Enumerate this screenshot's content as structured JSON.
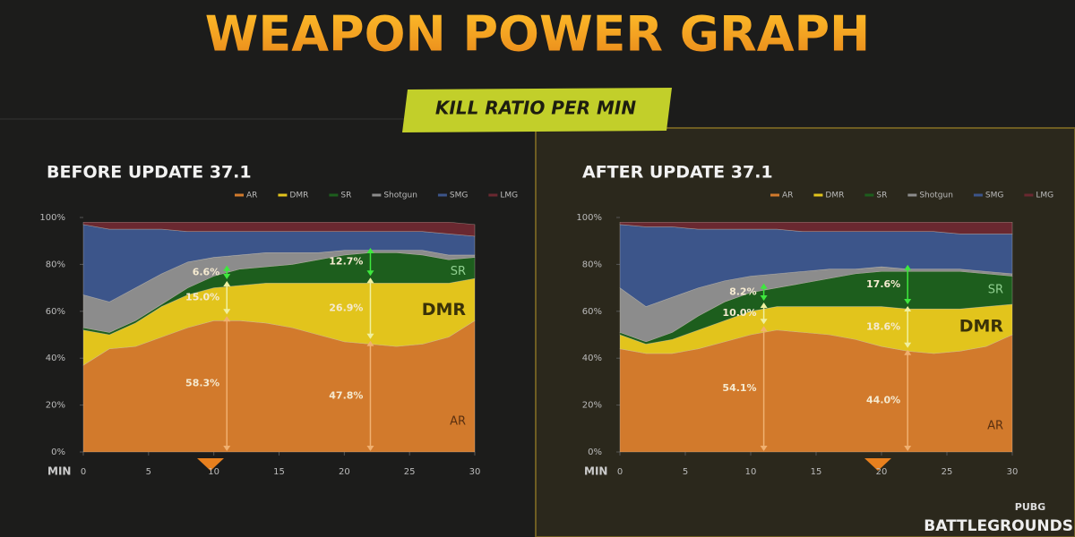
{
  "title": "WEAPON POWER GRAPH",
  "subtitle": "KILL RATIO PER MIN",
  "logo": [
    "PUBG",
    "BATTLEGROUNDS"
  ],
  "chart_data": [
    {
      "type": "stacked-area",
      "title": "BEFORE UPDATE 37.1",
      "xlabel": "MIN",
      "legend": "upper right",
      "grid": false,
      "x": [
        0,
        2,
        4,
        6,
        8,
        10,
        12,
        14,
        16,
        18,
        20,
        22,
        24,
        26,
        28,
        30
      ],
      "xlim": [
        0,
        30
      ],
      "xticks": [
        0,
        5,
        10,
        15,
        20,
        25,
        30
      ],
      "ylim": [
        0,
        100
      ],
      "yticks": [
        {
          "value": 0,
          "label": "0%"
        },
        {
          "value": 20,
          "label": "20%"
        },
        {
          "value": 40,
          "label": "40%"
        },
        {
          "value": 60,
          "label": "60%"
        },
        {
          "value": 80,
          "label": "80%"
        },
        {
          "value": 100,
          "label": "100%"
        }
      ],
      "series": [
        {
          "name": "AR",
          "color": "#d27a2c",
          "values": [
            37,
            44,
            45,
            49,
            53,
            56,
            56,
            55,
            53,
            50,
            47,
            46,
            45,
            46,
            49,
            56
          ]
        },
        {
          "name": "DMR",
          "color": "#e2c41c",
          "values": [
            15,
            6,
            10,
            13,
            14,
            14,
            15,
            17,
            19,
            22,
            25,
            26,
            27,
            26,
            23,
            18
          ]
        },
        {
          "name": "SR",
          "color": "#1d5e1d",
          "values": [
            1,
            1,
            1,
            1,
            3,
            5,
            7,
            7,
            8,
            10,
            12,
            13,
            13,
            12,
            10,
            9
          ]
        },
        {
          "name": "Shotgun",
          "color": "#8c8c8c",
          "values": [
            14,
            13,
            14,
            13,
            11,
            8,
            6,
            6,
            5,
            3,
            2,
            1,
            1,
            2,
            2,
            1
          ]
        },
        {
          "name": "SMG",
          "color": "#3c558a",
          "values": [
            30,
            31,
            25,
            19,
            13,
            11,
            10,
            9,
            9,
            9,
            8,
            8,
            8,
            8,
            9,
            8
          ]
        },
        {
          "name": "LMG",
          "color": "#6a2830",
          "values": [
            1,
            3,
            3,
            3,
            4,
            4,
            4,
            4,
            4,
            4,
            4,
            4,
            4,
            4,
            5,
            5
          ]
        }
      ],
      "annotations": [
        {
          "x": 11,
          "value": 58.3,
          "label": "58.3%"
        },
        {
          "x": 11,
          "value": 15.0,
          "label": "15.0%"
        },
        {
          "x": 11,
          "value": 6.6,
          "label": "6.6%"
        },
        {
          "x": 22,
          "value": 47.8,
          "label": "47.8%"
        },
        {
          "x": 22,
          "value": 26.9,
          "label": "26.9%"
        },
        {
          "x": 22,
          "value": 12.7,
          "label": "12.7%"
        }
      ]
    },
    {
      "type": "stacked-area",
      "title": "AFTER UPDATE 37.1",
      "xlabel": "MIN",
      "legend": "upper right",
      "grid": false,
      "x": [
        0,
        2,
        4,
        6,
        8,
        10,
        12,
        14,
        16,
        18,
        20,
        22,
        24,
        26,
        28,
        30
      ],
      "xlim": [
        0,
        30
      ],
      "xticks": [
        0,
        5,
        10,
        15,
        20,
        25,
        30
      ],
      "ylim": [
        0,
        100
      ],
      "yticks": [
        {
          "value": 0,
          "label": "0%"
        },
        {
          "value": 20,
          "label": "20%"
        },
        {
          "value": 40,
          "label": "40%"
        },
        {
          "value": 60,
          "label": "60%"
        },
        {
          "value": 80,
          "label": "80%"
        },
        {
          "value": 100,
          "label": "100%"
        }
      ],
      "series": [
        {
          "name": "AR",
          "color": "#d27a2c",
          "values": [
            44,
            42,
            42,
            44,
            47,
            50,
            52,
            51,
            50,
            48,
            45,
            43,
            42,
            43,
            45,
            50
          ]
        },
        {
          "name": "DMR",
          "color": "#e2c41c",
          "values": [
            6,
            4,
            6,
            8,
            9,
            10,
            10,
            11,
            12,
            14,
            17,
            18,
            19,
            18,
            17,
            13
          ]
        },
        {
          "name": "SR",
          "color": "#1d5e1d",
          "values": [
            1,
            1,
            3,
            6,
            8,
            8,
            8,
            10,
            12,
            14,
            15,
            16,
            16,
            16,
            14,
            12
          ]
        },
        {
          "name": "Shotgun",
          "color": "#8c8c8c",
          "values": [
            19,
            15,
            15,
            12,
            9,
            7,
            6,
            5,
            4,
            2,
            2,
            1,
            1,
            1,
            1,
            1
          ]
        },
        {
          "name": "SMG",
          "color": "#3c558a",
          "values": [
            27,
            34,
            30,
            25,
            22,
            20,
            19,
            17,
            16,
            16,
            15,
            16,
            16,
            15,
            16,
            17
          ]
        },
        {
          "name": "LMG",
          "color": "#6a2830",
          "values": [
            1,
            2,
            2,
            3,
            3,
            3,
            3,
            4,
            4,
            4,
            4,
            4,
            4,
            5,
            5,
            5
          ]
        }
      ],
      "annotations": [
        {
          "x": 11,
          "value": 54.1,
          "label": "54.1%"
        },
        {
          "x": 11,
          "value": 10.0,
          "label": "10.0%"
        },
        {
          "x": 11,
          "value": 8.2,
          "label": "8.2%"
        },
        {
          "x": 22,
          "value": 44.0,
          "label": "44.0%"
        },
        {
          "x": 22,
          "value": 18.6,
          "label": "18.6%"
        },
        {
          "x": 22,
          "value": 17.6,
          "label": "17.6%"
        }
      ]
    }
  ]
}
